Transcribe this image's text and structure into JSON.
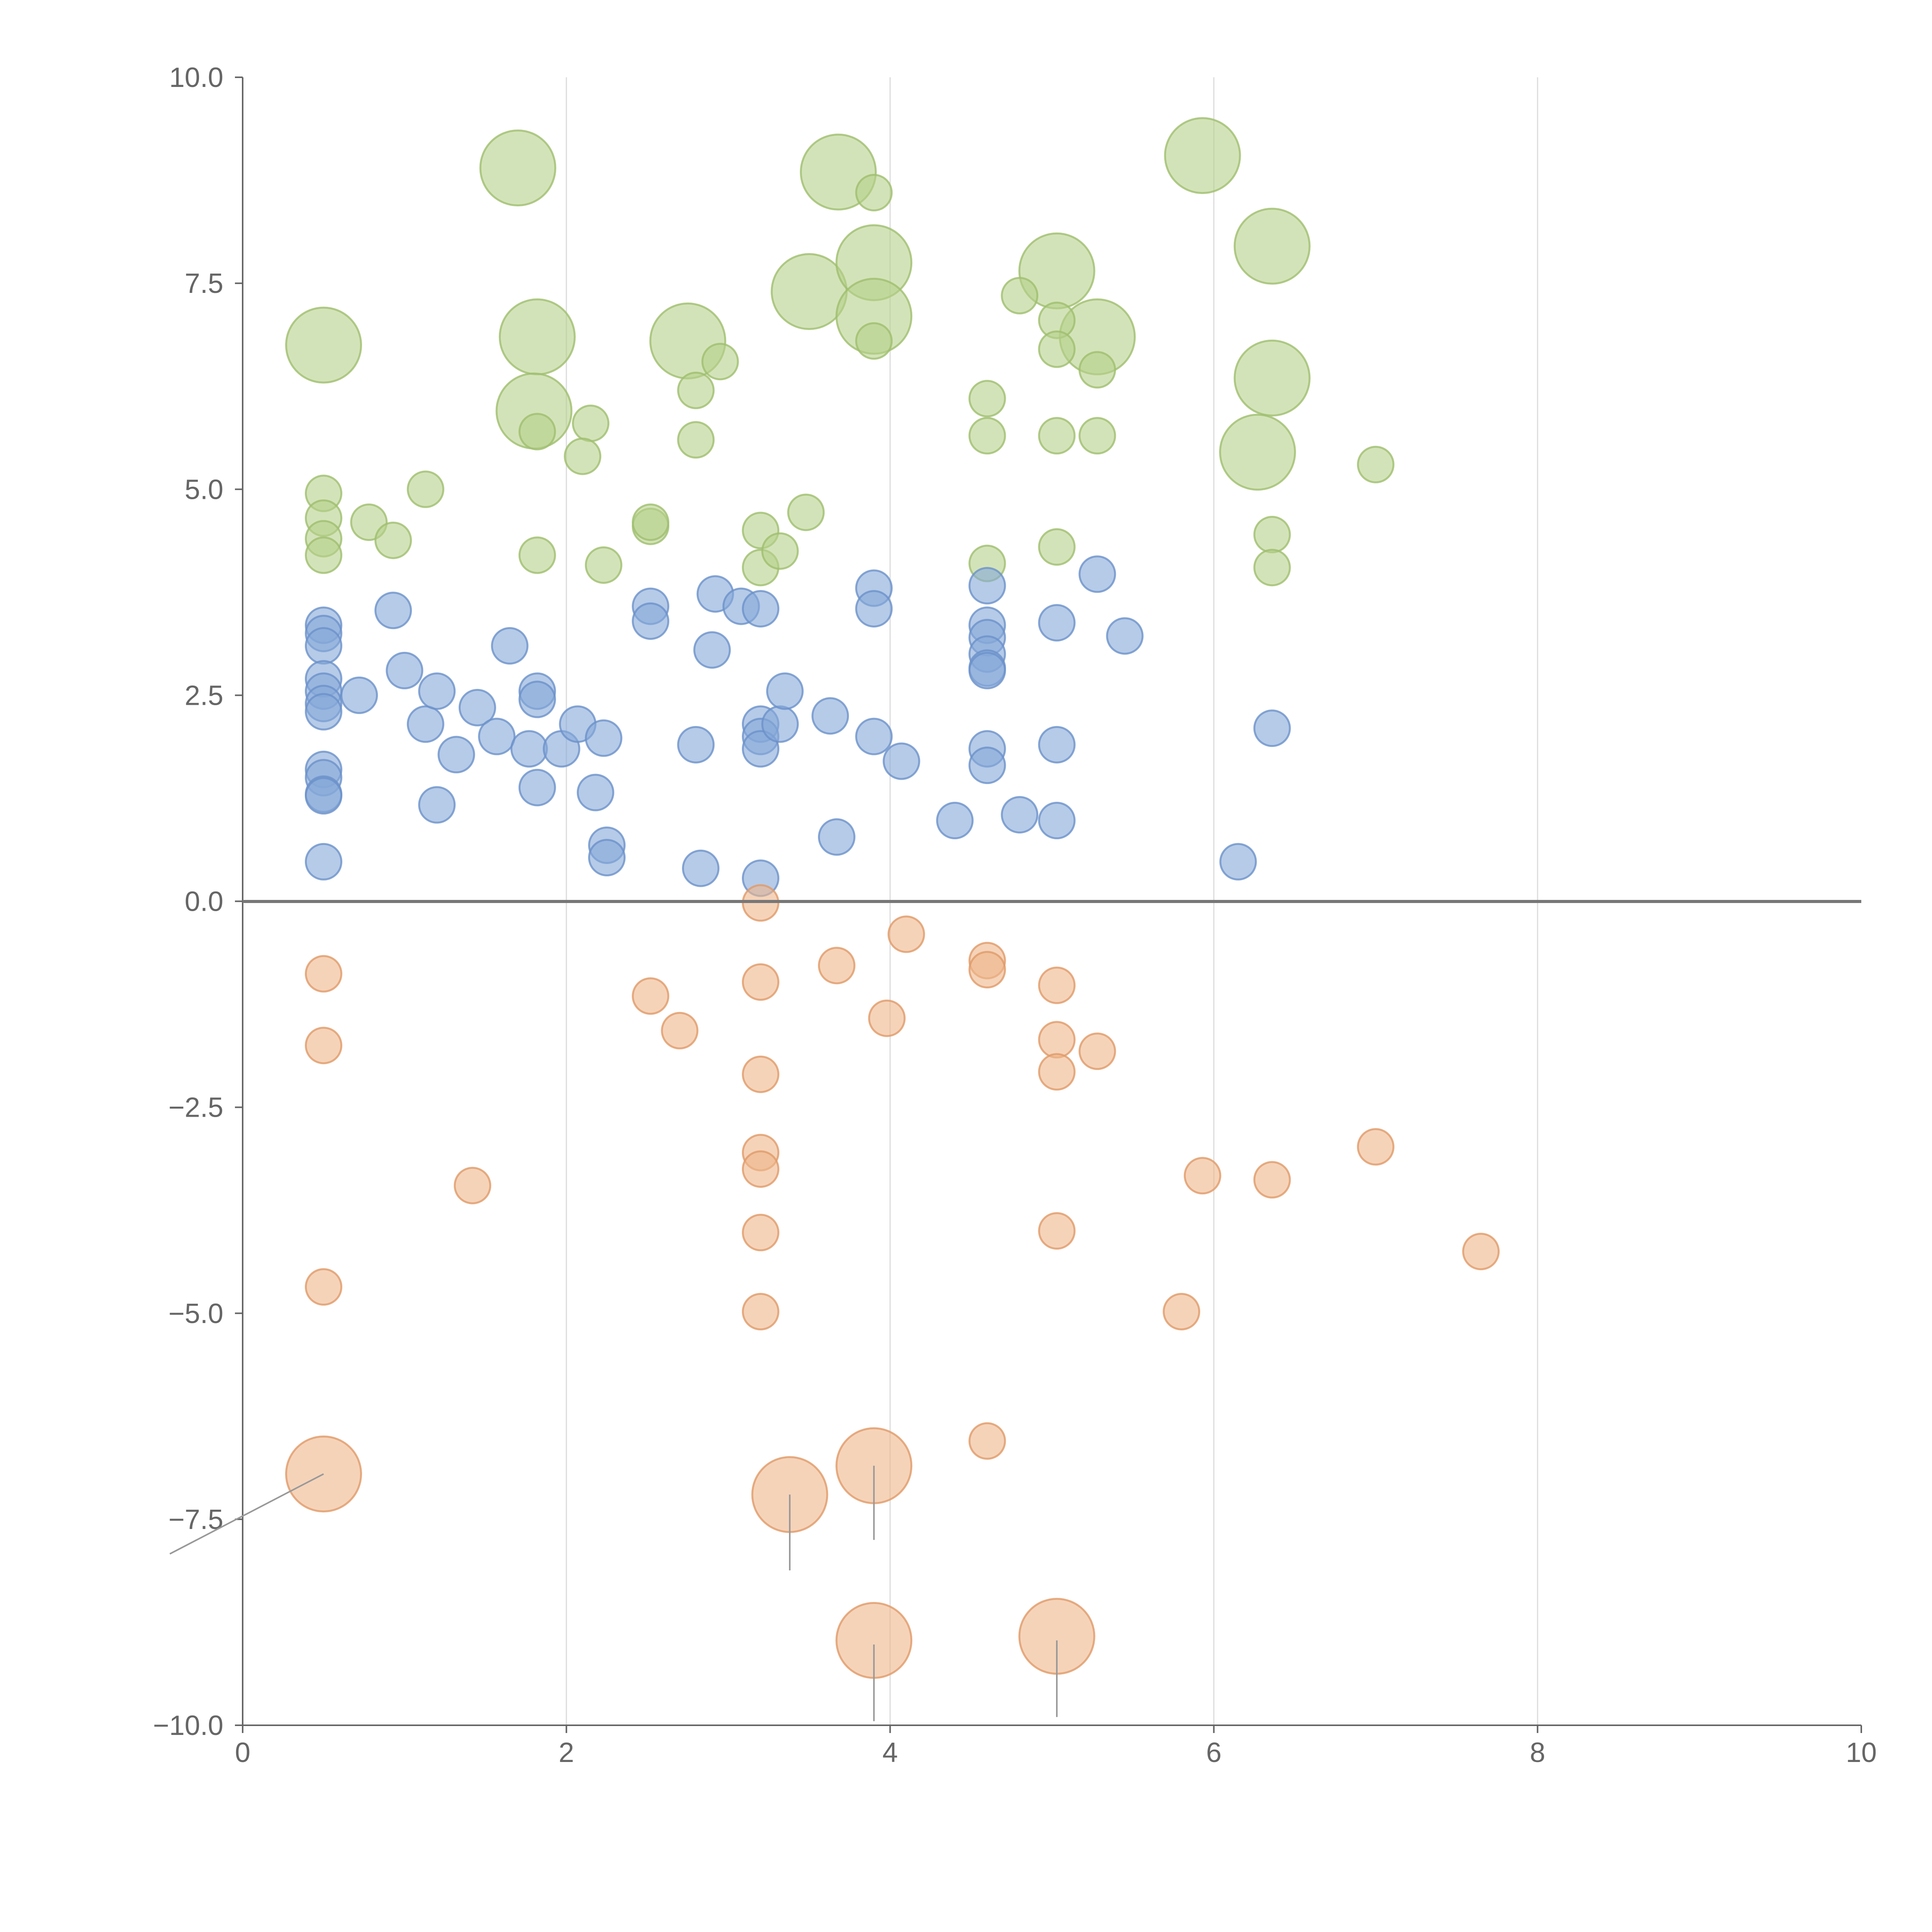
{
  "chart_data": {
    "type": "scatter",
    "title": "",
    "xlabel": "",
    "ylabel": "",
    "xlim": [
      0,
      10
    ],
    "ylim": [
      -10,
      10
    ],
    "grid": "vertical",
    "x_ticks": [
      "0",
      "2",
      "4",
      "6",
      "8",
      "10"
    ],
    "y_ticks": [
      "10.0",
      "7.5",
      "5.0",
      "2.5",
      "0.0",
      "−2.5",
      "−5.0",
      "−7.5",
      "−10.0"
    ],
    "x_tick_values": [
      0,
      2,
      4,
      6,
      8,
      10
    ],
    "y_tick_values": [
      10,
      7.5,
      5,
      2.5,
      0,
      -2.5,
      -5,
      -7.5,
      -10
    ],
    "series": [
      {
        "name": "green",
        "color": "#b5d18a",
        "stroke": "#9fbe6e",
        "points": [
          [
            0.5,
            6.75,
            3
          ],
          [
            1.7,
            8.9,
            3
          ],
          [
            1.82,
            6.85,
            3
          ],
          [
            1.8,
            5.95,
            3
          ],
          [
            2.75,
            6.8,
            3
          ],
          [
            3.68,
            8.85,
            3
          ],
          [
            3.5,
            7.4,
            3
          ],
          [
            3.9,
            7.75,
            3
          ],
          [
            3.9,
            7.1,
            3
          ],
          [
            5.03,
            7.65,
            3
          ],
          [
            5.28,
            6.85,
            3
          ],
          [
            5.93,
            9.05,
            3
          ],
          [
            6.36,
            7.95,
            3
          ],
          [
            6.36,
            6.35,
            3
          ],
          [
            6.27,
            5.45,
            3
          ],
          [
            3.9,
            8.6,
            1
          ],
          [
            3.9,
            6.8,
            1
          ],
          [
            2.95,
            6.55,
            1
          ],
          [
            2.8,
            6.2,
            1
          ],
          [
            2.8,
            5.6,
            1
          ],
          [
            2.15,
            5.8,
            1
          ],
          [
            2.1,
            5.4,
            1
          ],
          [
            1.82,
            5.7,
            1
          ],
          [
            4.6,
            6.1,
            1
          ],
          [
            4.6,
            5.65,
            1
          ],
          [
            4.8,
            7.35,
            1
          ],
          [
            5.03,
            7.05,
            1
          ],
          [
            5.03,
            6.7,
            1
          ],
          [
            5.28,
            6.45,
            1
          ],
          [
            5.03,
            5.65,
            1
          ],
          [
            5.28,
            5.65,
            1
          ],
          [
            7.0,
            5.3,
            1
          ],
          [
            0.5,
            4.95,
            1
          ],
          [
            0.5,
            4.65,
            1
          ],
          [
            0.5,
            4.4,
            1
          ],
          [
            0.5,
            4.2,
            1
          ],
          [
            0.78,
            4.6,
            1
          ],
          [
            0.93,
            4.38,
            1
          ],
          [
            1.13,
            5.0,
            1
          ],
          [
            1.82,
            4.2,
            1
          ],
          [
            2.23,
            4.08,
            1
          ],
          [
            2.52,
            4.55,
            1
          ],
          [
            2.52,
            4.6,
            1
          ],
          [
            3.2,
            4.5,
            1
          ],
          [
            3.2,
            4.05,
            1
          ],
          [
            3.32,
            4.25,
            1
          ],
          [
            3.48,
            4.72,
            1
          ],
          [
            4.6,
            4.1,
            1
          ],
          [
            5.03,
            4.3,
            1
          ],
          [
            6.36,
            4.45,
            1
          ],
          [
            6.36,
            4.05,
            1
          ]
        ]
      },
      {
        "name": "blue",
        "color": "#86a9d9",
        "stroke": "#6b91c9",
        "points": [
          [
            0.5,
            3.35,
            1
          ],
          [
            0.5,
            3.25,
            1
          ],
          [
            0.5,
            3.1,
            1
          ],
          [
            0.5,
            2.7,
            1
          ],
          [
            0.5,
            2.55,
            1
          ],
          [
            0.5,
            2.4,
            1
          ],
          [
            0.5,
            2.3,
            1
          ],
          [
            0.5,
            1.6,
            1
          ],
          [
            0.5,
            1.5,
            1
          ],
          [
            0.5,
            1.3,
            1
          ],
          [
            0.5,
            1.28,
            1
          ],
          [
            0.5,
            0.48,
            1
          ],
          [
            0.72,
            2.5,
            1
          ],
          [
            0.93,
            3.53,
            1
          ],
          [
            1.0,
            2.8,
            1
          ],
          [
            1.13,
            2.15,
            1
          ],
          [
            1.2,
            2.55,
            1
          ],
          [
            1.2,
            1.17,
            1
          ],
          [
            1.32,
            1.78,
            1
          ],
          [
            1.45,
            2.35,
            1
          ],
          [
            1.57,
            2.0,
            1
          ],
          [
            1.65,
            3.1,
            1
          ],
          [
            1.77,
            1.85,
            1
          ],
          [
            1.82,
            2.55,
            1
          ],
          [
            1.82,
            2.45,
            1
          ],
          [
            1.82,
            1.38,
            1
          ],
          [
            1.97,
            1.85,
            1
          ],
          [
            2.07,
            2.15,
            1
          ],
          [
            2.18,
            1.32,
            1
          ],
          [
            2.23,
            1.98,
            1
          ],
          [
            2.25,
            0.68,
            1
          ],
          [
            2.25,
            0.53,
            1
          ],
          [
            2.52,
            3.58,
            1
          ],
          [
            2.52,
            3.4,
            1
          ],
          [
            2.8,
            1.9,
            1
          ],
          [
            2.83,
            0.4,
            1
          ],
          [
            2.9,
            3.05,
            1
          ],
          [
            2.92,
            3.73,
            1
          ],
          [
            3.08,
            3.58,
            1
          ],
          [
            3.2,
            3.55,
            1
          ],
          [
            3.2,
            2.15,
            1
          ],
          [
            3.2,
            2.0,
            1
          ],
          [
            3.2,
            1.85,
            1
          ],
          [
            3.2,
            0.28,
            1
          ],
          [
            3.32,
            2.15,
            1
          ],
          [
            3.35,
            2.55,
            1
          ],
          [
            3.63,
            2.25,
            1
          ],
          [
            3.67,
            0.78,
            1
          ],
          [
            3.9,
            3.8,
            1
          ],
          [
            3.9,
            3.55,
            1
          ],
          [
            3.9,
            2.0,
            1
          ],
          [
            4.07,
            1.7,
            1
          ],
          [
            4.4,
            0.98,
            1
          ],
          [
            4.6,
            3.83,
            1
          ],
          [
            4.6,
            3.35,
            1
          ],
          [
            4.6,
            3.2,
            1
          ],
          [
            4.6,
            3.0,
            1
          ],
          [
            4.6,
            2.83,
            1
          ],
          [
            4.6,
            2.8,
            1
          ],
          [
            4.6,
            1.85,
            1
          ],
          [
            4.6,
            1.65,
            1
          ],
          [
            4.8,
            1.05,
            1
          ],
          [
            5.03,
            3.38,
            1
          ],
          [
            5.03,
            1.9,
            1
          ],
          [
            5.03,
            0.98,
            1
          ],
          [
            5.28,
            3.97,
            1
          ],
          [
            5.45,
            3.22,
            1
          ],
          [
            6.15,
            0.48,
            1
          ],
          [
            6.36,
            2.1,
            1
          ]
        ]
      },
      {
        "name": "orange",
        "color": "#eeb68a",
        "stroke": "#e09a68",
        "points": [
          [
            0.5,
            -0.88,
            1
          ],
          [
            0.5,
            -1.75,
            1
          ],
          [
            0.5,
            -4.68,
            1
          ],
          [
            1.42,
            -3.45,
            1
          ],
          [
            2.52,
            -1.15,
            1
          ],
          [
            2.7,
            -1.57,
            1
          ],
          [
            3.2,
            -0.02,
            1
          ],
          [
            3.2,
            -0.98,
            1
          ],
          [
            3.2,
            -2.1,
            1
          ],
          [
            3.2,
            -3.05,
            1
          ],
          [
            3.2,
            -3.25,
            1
          ],
          [
            3.2,
            -4.02,
            1
          ],
          [
            3.2,
            -4.98,
            1
          ],
          [
            3.67,
            -0.78,
            1
          ],
          [
            3.98,
            -1.42,
            1
          ],
          [
            4.1,
            -0.4,
            1
          ],
          [
            4.6,
            -0.72,
            1
          ],
          [
            4.6,
            -0.83,
            1
          ],
          [
            4.6,
            -6.55,
            1
          ],
          [
            5.03,
            -1.02,
            1
          ],
          [
            5.03,
            -1.68,
            1
          ],
          [
            5.03,
            -2.07,
            1
          ],
          [
            5.03,
            -4.0,
            1
          ],
          [
            5.28,
            -1.82,
            1
          ],
          [
            5.8,
            -4.98,
            1
          ],
          [
            5.93,
            -3.33,
            1
          ],
          [
            6.36,
            -3.38,
            1
          ],
          [
            7.0,
            -2.98,
            1
          ],
          [
            7.65,
            -4.25,
            1
          ],
          [
            0.5,
            -6.95,
            3
          ],
          [
            3.38,
            -7.2,
            3
          ],
          [
            3.9,
            -6.85,
            3
          ],
          [
            3.9,
            -8.97,
            3
          ],
          [
            5.03,
            -8.92,
            3
          ]
        ]
      }
    ],
    "callouts": [
      [
        0.5,
        -6.95,
        -0.45,
        -7.92
      ],
      [
        3.38,
        -7.2,
        3.38,
        -8.12
      ],
      [
        3.9,
        -6.85,
        3.9,
        -7.75
      ],
      [
        3.9,
        -9.02,
        3.9,
        -9.95
      ],
      [
        5.03,
        -8.97,
        5.03,
        -9.9
      ]
    ]
  }
}
